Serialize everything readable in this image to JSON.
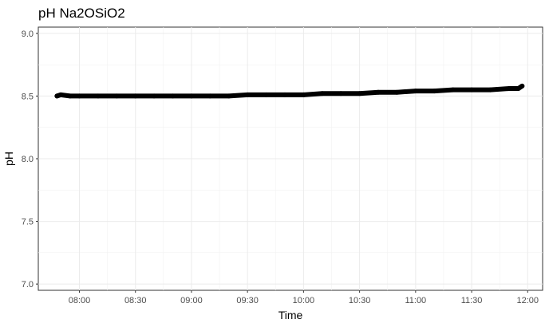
{
  "chart_data": {
    "type": "scatter",
    "title": "pH Na2OSiO2",
    "xlabel": "Time",
    "ylabel": "pH",
    "xlim": [
      "07:38",
      "12:08"
    ],
    "ylim": [
      6.95,
      9.05
    ],
    "x_ticks": [
      "08:00",
      "08:30",
      "09:00",
      "09:30",
      "10:00",
      "10:30",
      "11:00",
      "11:30",
      "12:00"
    ],
    "y_ticks": [
      "7.0",
      "7.5",
      "8.0",
      "8.5",
      "9.0"
    ],
    "grid": true,
    "theme": "bw",
    "point_color": "#000000",
    "series": [
      {
        "x": [
          "07:48",
          "07:50",
          "07:55",
          "08:00",
          "08:10",
          "08:20",
          "08:30",
          "08:40",
          "08:50",
          "09:00",
          "09:10",
          "09:20",
          "09:30",
          "09:40",
          "09:50",
          "10:00",
          "10:10",
          "10:20",
          "10:30",
          "10:40",
          "10:50",
          "11:00",
          "11:10",
          "11:20",
          "11:30",
          "11:40",
          "11:50",
          "11:55",
          "11:57"
        ],
        "y": [
          8.5,
          8.51,
          8.5,
          8.5,
          8.5,
          8.5,
          8.5,
          8.5,
          8.5,
          8.5,
          8.5,
          8.5,
          8.51,
          8.51,
          8.51,
          8.51,
          8.52,
          8.52,
          8.52,
          8.53,
          8.53,
          8.54,
          8.54,
          8.55,
          8.55,
          8.55,
          8.56,
          8.56,
          8.58
        ]
      }
    ]
  }
}
